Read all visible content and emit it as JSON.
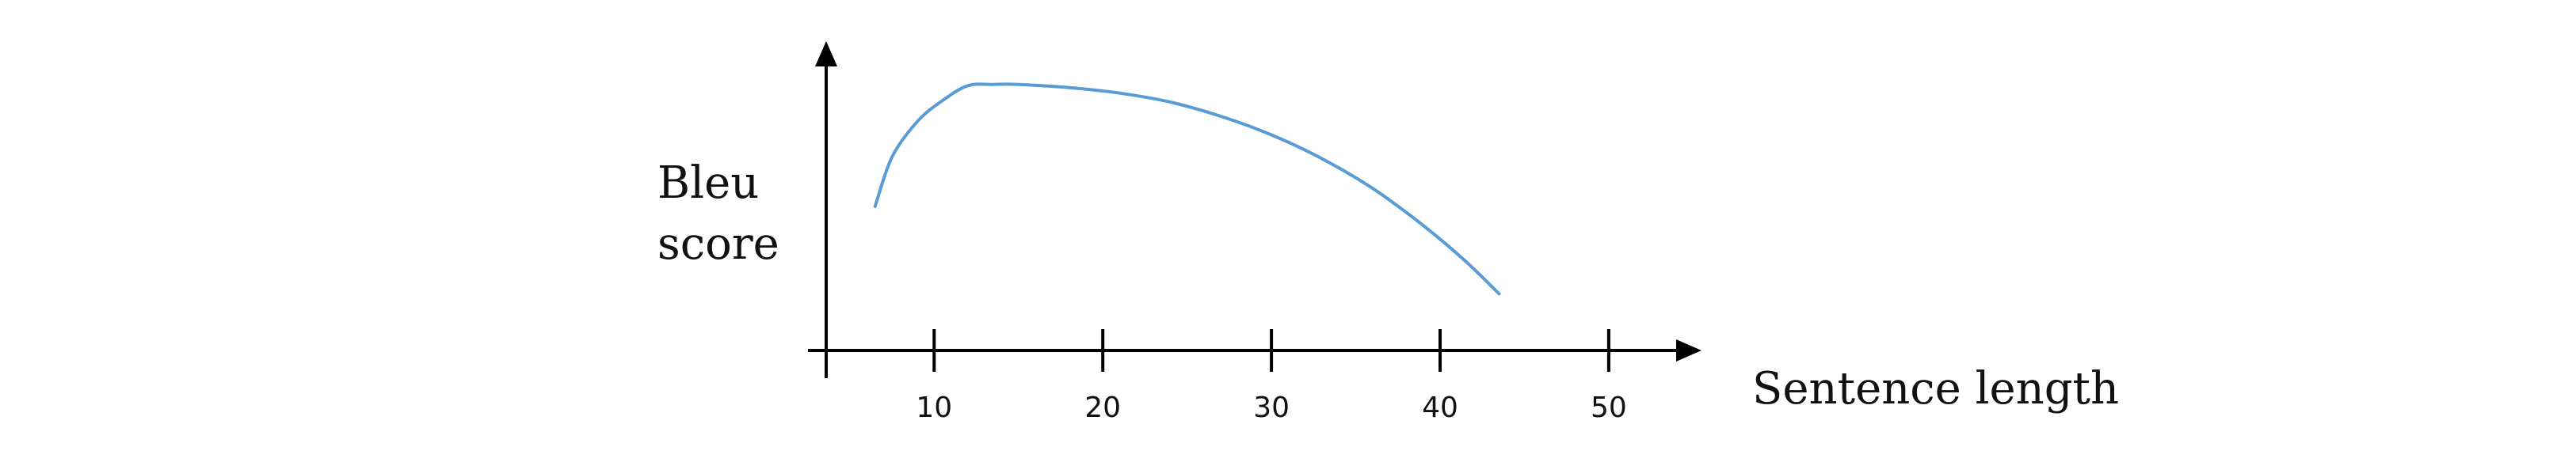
{
  "chart_data": {
    "type": "line",
    "title": "",
    "xlabel": "Sentence length",
    "ylabel_lines": [
      "Bleu",
      "score"
    ],
    "x_ticks": [
      10,
      20,
      30,
      40,
      50
    ],
    "x_tick_labels": [
      "10",
      "20",
      "30",
      "40",
      "50"
    ],
    "xlim": [
      3.6,
      55.5
    ],
    "ylim": [
      0,
      10
    ],
    "y_ticks": [],
    "grid": false,
    "legend": "none",
    "series": [
      {
        "color": "#5b9bd5",
        "x": [
          6.5,
          7.5,
          9,
          10.5,
          12,
          13.5,
          15,
          18,
          21,
          24,
          27,
          30,
          33,
          36,
          39,
          41.5,
          43.5
        ],
        "y": [
          4.66,
          6.25,
          7.4,
          8.08,
          8.56,
          8.6,
          8.6,
          8.5,
          8.32,
          8.03,
          7.57,
          6.97,
          6.2,
          5.24,
          4.04,
          2.89,
          1.83
        ]
      }
    ]
  }
}
